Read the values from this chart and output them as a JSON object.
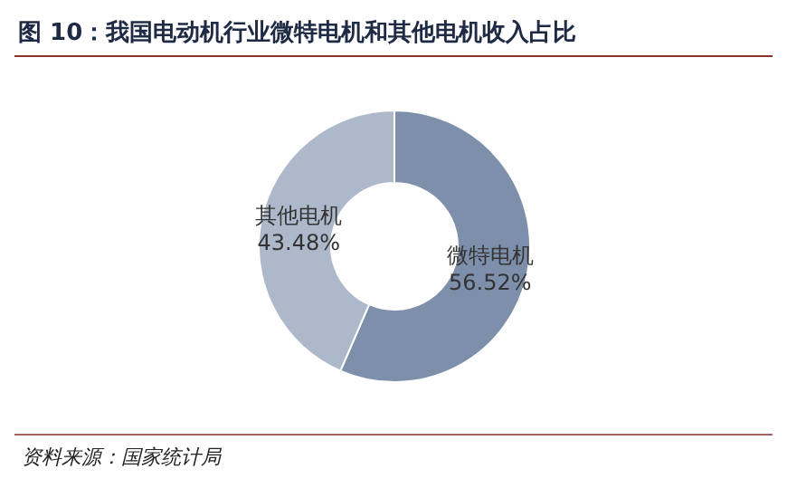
{
  "chart_data": {
    "type": "donut",
    "title": "图 10：我国电动机行业微特电机和其他电机收入占比",
    "categories": [
      "微特电机",
      "其他电机"
    ],
    "values": [
      56.52,
      43.48
    ],
    "colors": [
      "#7d8fab",
      "#adb8cb"
    ],
    "value_labels": [
      "56.52%",
      "43.48%"
    ],
    "annotations": [
      "资料来源：国家统计局"
    ]
  }
}
